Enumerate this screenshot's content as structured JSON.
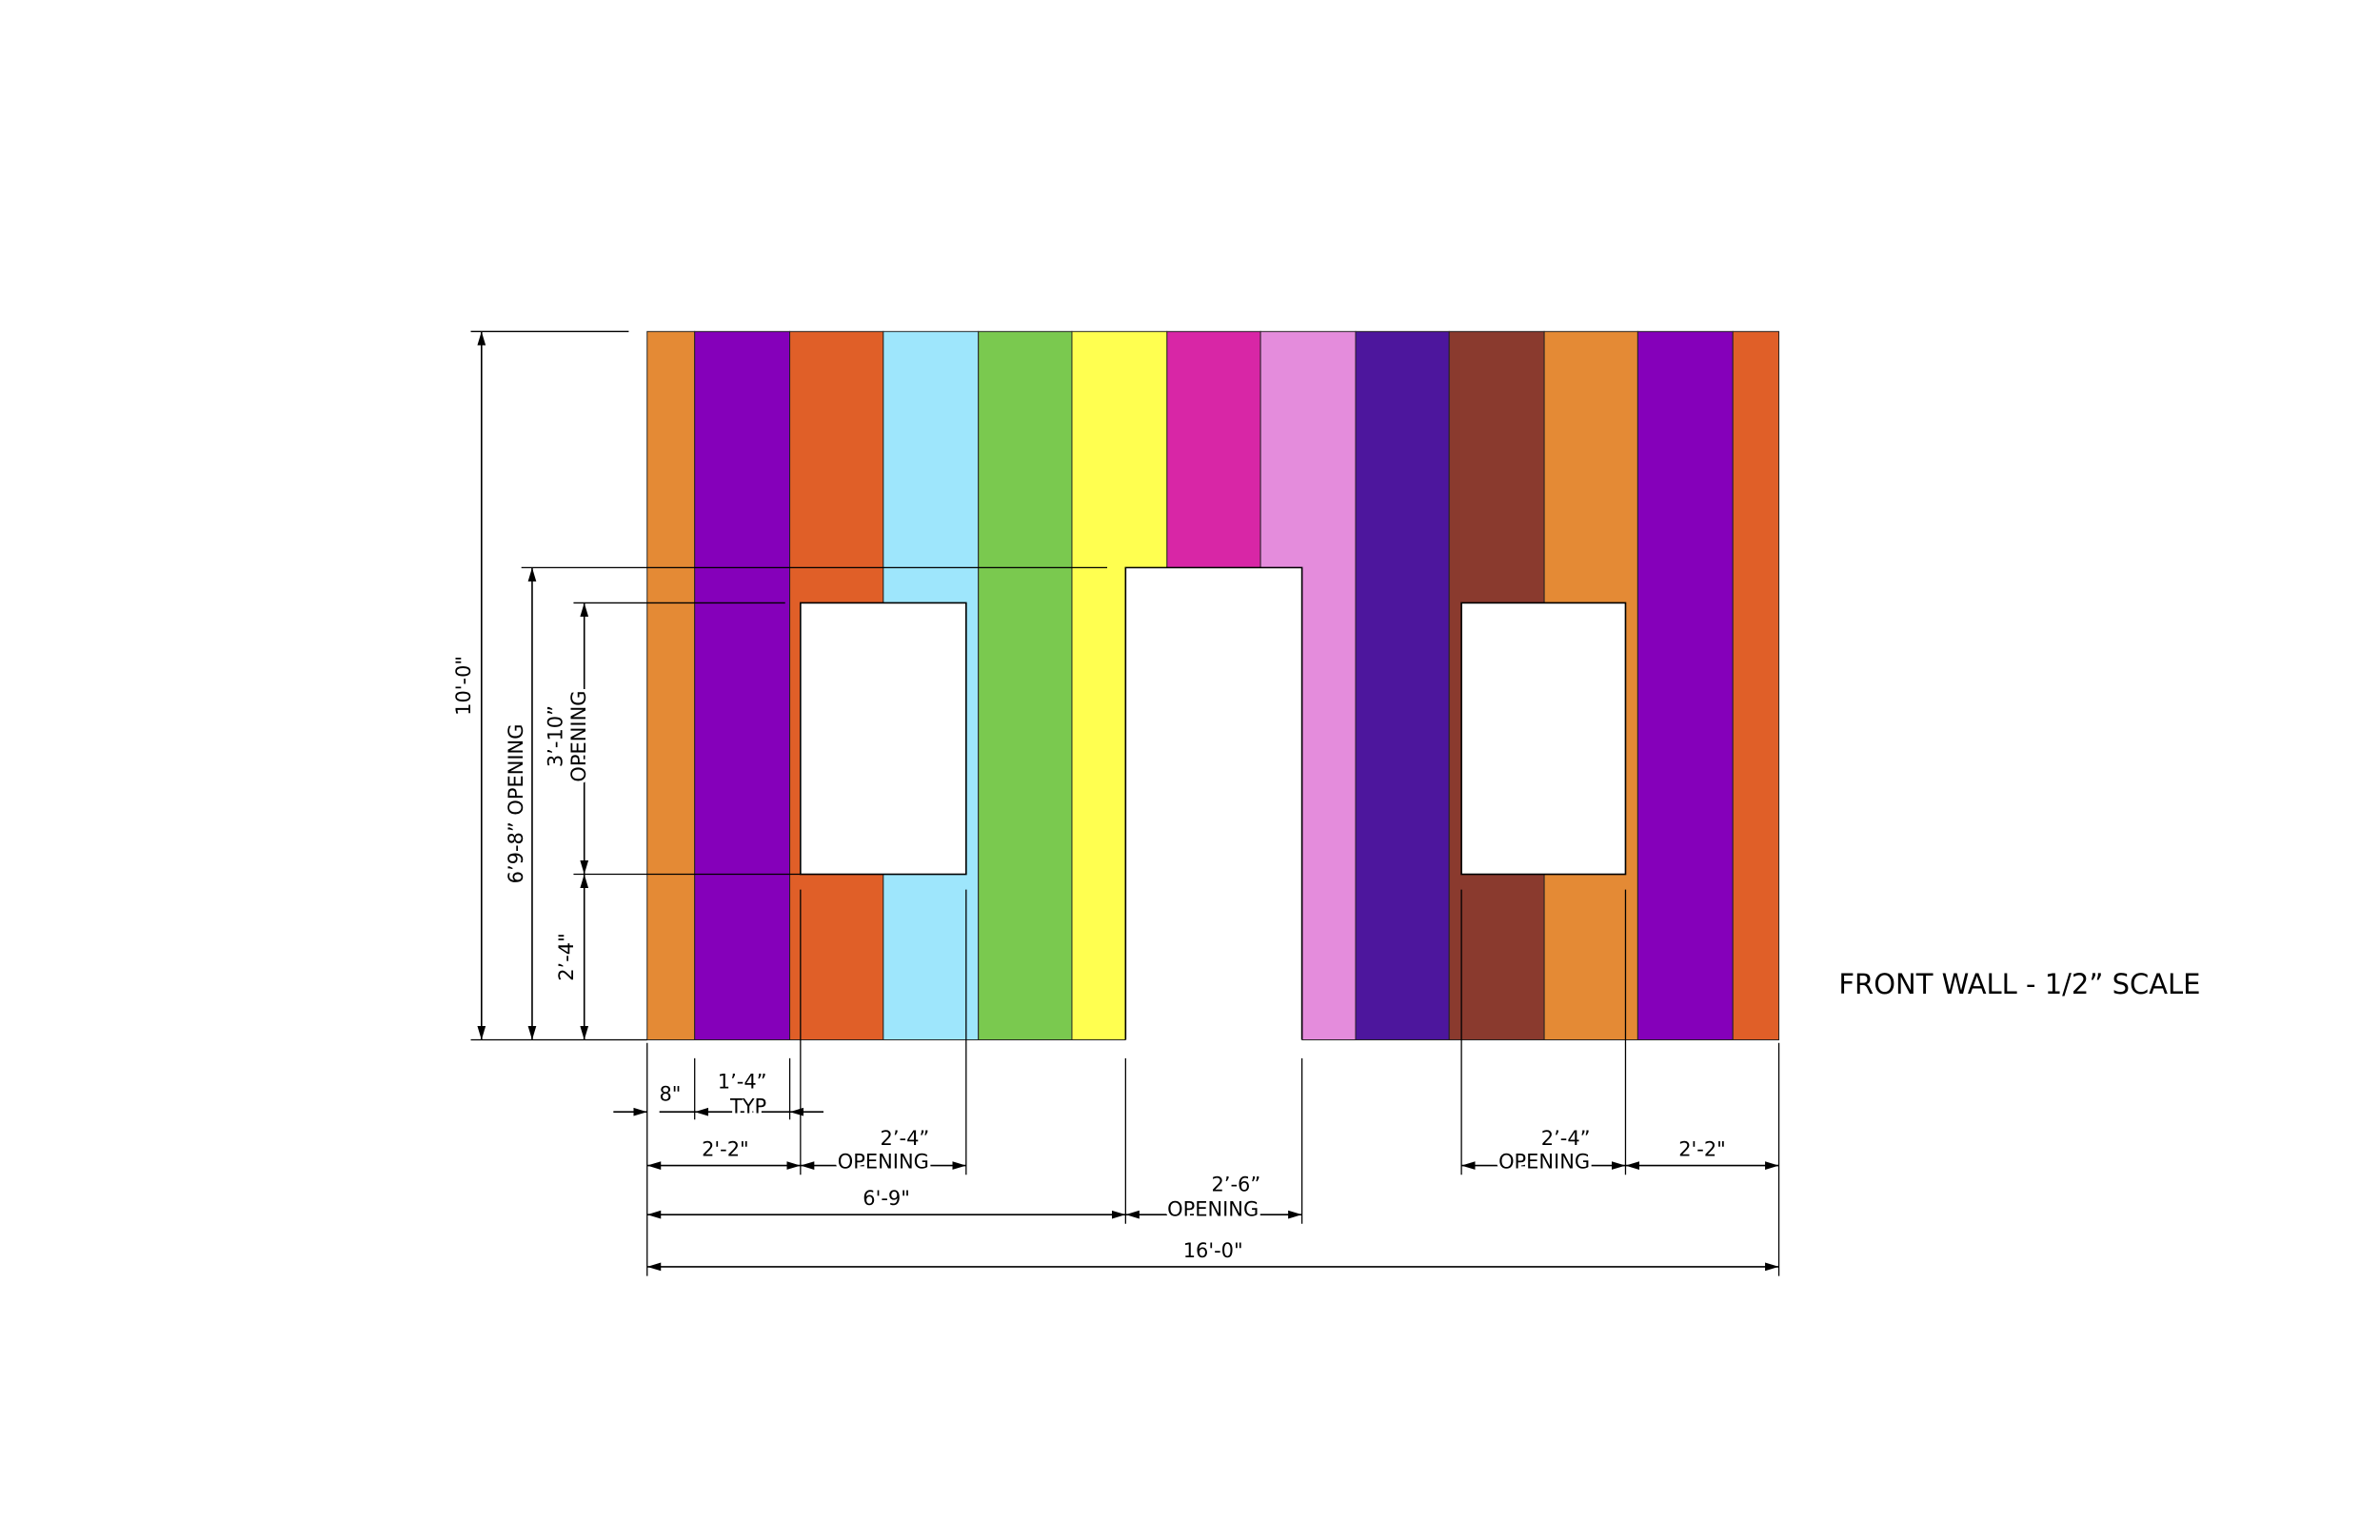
{
  "title": "FRONT WALL - 1/2” SCALE",
  "dimensions": {
    "wall_height": "10'-0\"",
    "door_height": "6’9-8” OPENING",
    "window_height": [
      "3’-10”",
      "OPENING"
    ],
    "sill_height": "2’-4\"",
    "end_panel": "8\"",
    "panel_width": [
      "1’-4”",
      "TYP"
    ],
    "left_to_window": "2'-2\"",
    "left_window_width": [
      "2’-4”",
      "OPENING"
    ],
    "left_to_door": "6'-9\"",
    "door_width": [
      "2’-6”",
      "OPENING"
    ],
    "right_window_width": [
      "2’-4”",
      "OPENING"
    ],
    "window_to_right": "2'-2\"",
    "wall_width": "16'-0\""
  }
}
